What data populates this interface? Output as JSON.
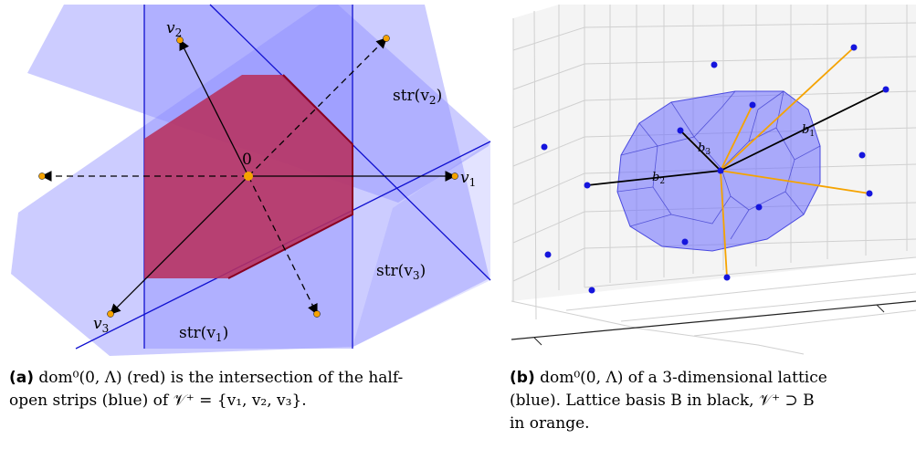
{
  "left": {
    "origin_label": "0",
    "labels": {
      "v1": "v",
      "v1_sub": "1",
      "v2": "v",
      "v2_sub": "2",
      "v3": "v",
      "v3_sub": "3"
    },
    "strip_labels": {
      "s1": "str(v",
      "s1_sub": "1",
      "s2": "str(v",
      "s2_sub": "2",
      "s3": "str(v",
      "s3_sub": "3",
      "close": ")"
    },
    "colors": {
      "strip": "#9fa0ff",
      "domain": "#b7305f",
      "arrow": "#000000",
      "point": "#f5a300",
      "edge": "#1010d0"
    }
  },
  "right": {
    "labels": {
      "b1": "b",
      "b1_sub": "1",
      "b2": "b",
      "b2_sub": "2",
      "b3": "b",
      "b3_sub": "3"
    },
    "colors": {
      "body": "#6c6cff",
      "points": "#1515dd",
      "basis": "#000000",
      "vplus": "#f5a300",
      "grid": "#d6d6d6"
    }
  },
  "captions": {
    "a_tag": "(a)",
    "a_text": " dom⁰(0, Λ) (red) is the intersection of the half-\nopen strips (blue) of 𝒱⁺ = {v₁, v₂, v₃}.",
    "b_tag": "(b)",
    "b_text": " dom⁰(0, Λ) of a 3-dimensional lattice\n(blue). Lattice basis B in black, 𝒱⁺ ⊃ B\nin orange."
  }
}
